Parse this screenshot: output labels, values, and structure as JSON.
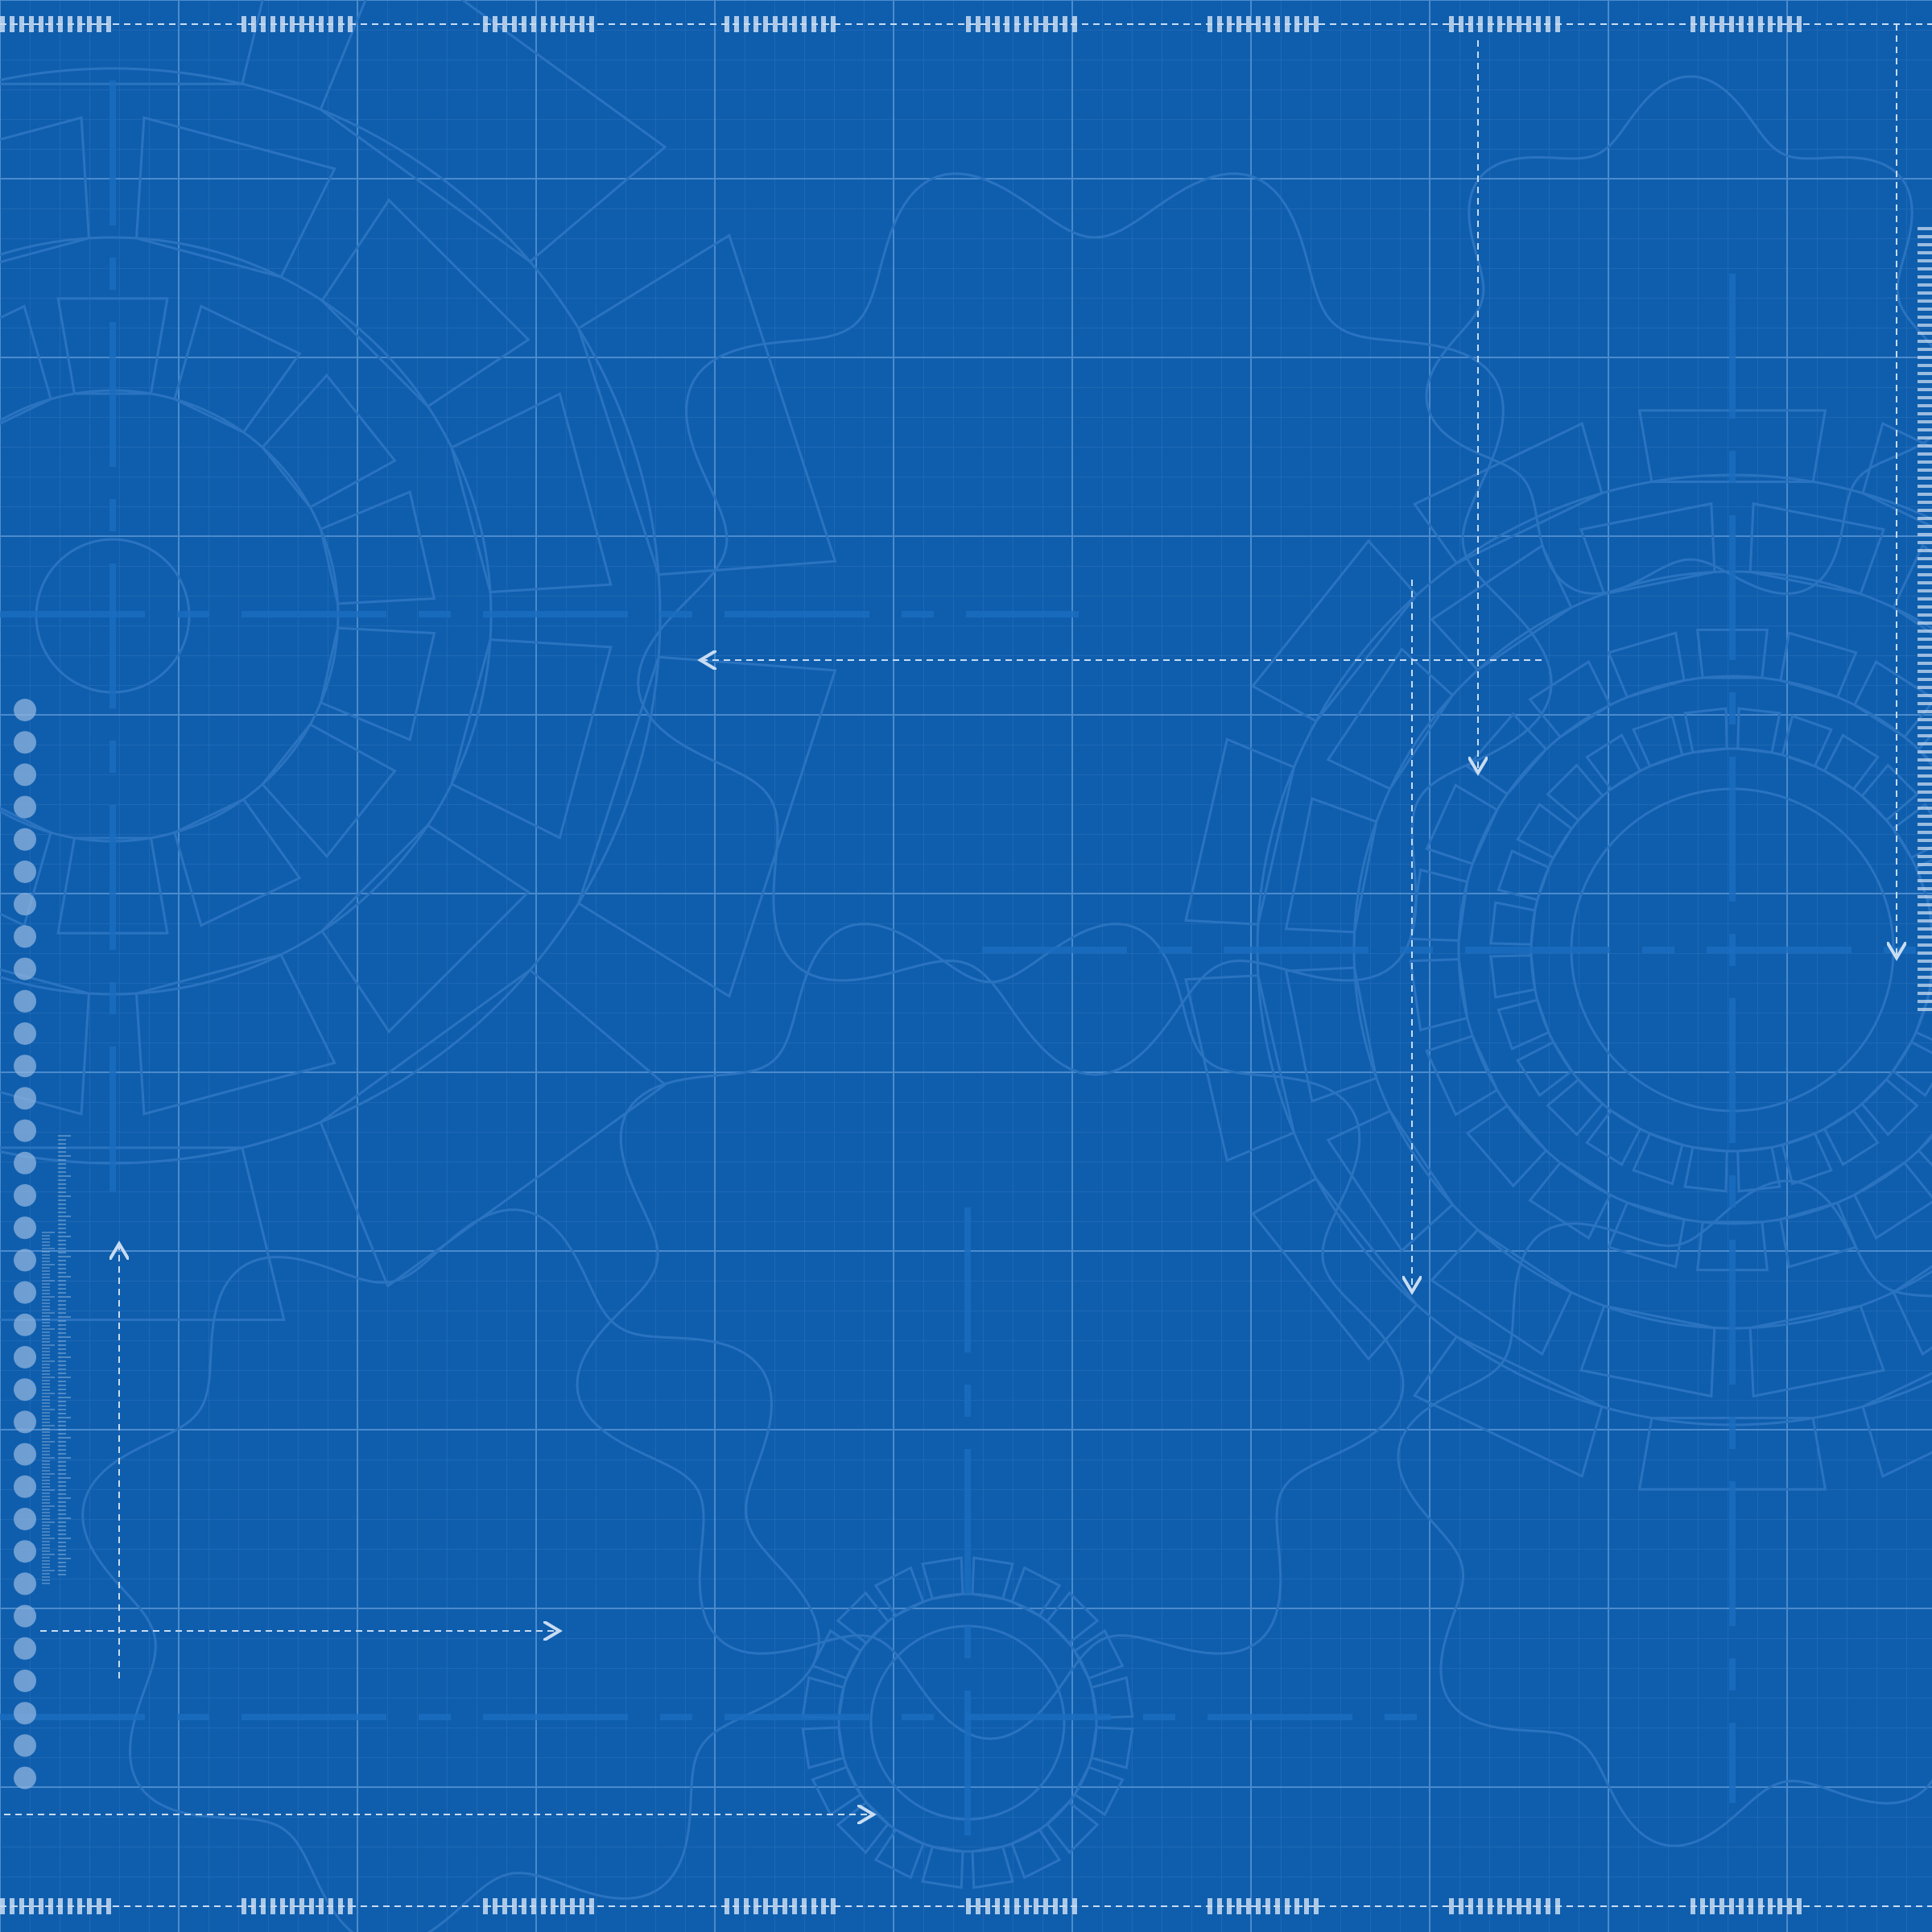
{
  "colors": {
    "background": "#0f5ead",
    "grid_fine": "#4d8cd0",
    "grid_major": "#5b96d6",
    "gear_outline": "#2a73c0",
    "center_line": "#1a6dbf",
    "annotation": "#c9dcf2",
    "hole_marker": "#8fb4df"
  },
  "icons": {
    "large_gears": "gear-icon",
    "wavy_gears": "gear-icon",
    "dimension_arrows": "arrow-icon",
    "binding_holes": "circle-icon"
  }
}
